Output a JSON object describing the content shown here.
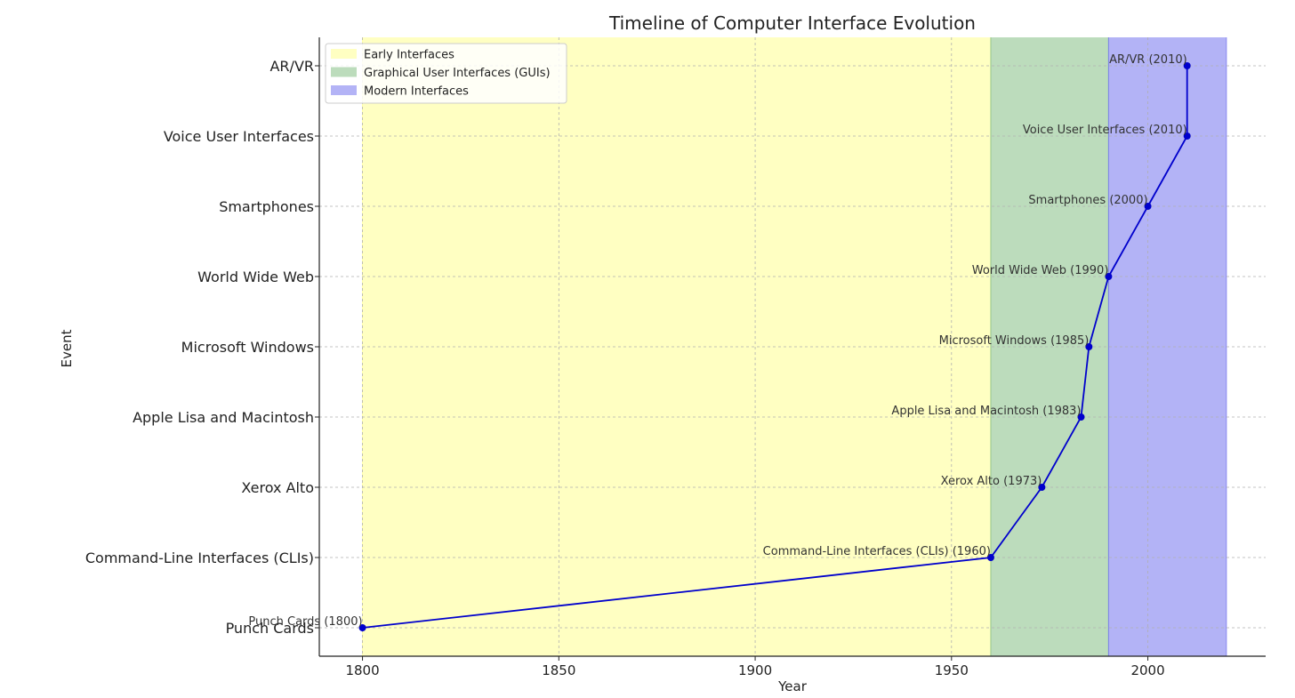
{
  "chart_data": {
    "type": "line",
    "title": "Timeline of Computer Interface Evolution",
    "xlabel": "Year",
    "ylabel": "Event",
    "xlim": [
      1789,
      2030
    ],
    "x_ticks": [
      1800,
      1850,
      1900,
      1950,
      2000
    ],
    "grid": true,
    "legend_position": "top-left",
    "categories": [
      "Punch Cards",
      "Command-Line Interfaces (CLIs)",
      "Xerox Alto",
      "Apple Lisa and Macintosh",
      "Microsoft Windows",
      "World Wide Web",
      "Smartphones",
      "Voice User Interfaces",
      "AR/VR"
    ],
    "series": [
      {
        "line_color": "#0000cc",
        "points": [
          {
            "category": "Punch Cards",
            "year": 1800,
            "label": "Punch Cards (1800)"
          },
          {
            "category": "Command-Line Interfaces (CLIs)",
            "year": 1960,
            "label": "Command-Line Interfaces (CLIs) (1960)"
          },
          {
            "category": "Xerox Alto",
            "year": 1973,
            "label": "Xerox Alto (1973)"
          },
          {
            "category": "Apple Lisa and Macintosh",
            "year": 1983,
            "label": "Apple Lisa and Macintosh (1983)"
          },
          {
            "category": "Microsoft Windows",
            "year": 1985,
            "label": "Microsoft Windows (1985)"
          },
          {
            "category": "World Wide Web",
            "year": 1990,
            "label": "World Wide Web (1990)"
          },
          {
            "category": "Smartphones",
            "year": 2000,
            "label": "Smartphones (2000)"
          },
          {
            "category": "Voice User Interfaces",
            "year": 2010,
            "label": "Voice User Interfaces (2010)"
          },
          {
            "category": "AR/VR",
            "year": 2010,
            "label": "AR/VR (2010)"
          }
        ]
      }
    ],
    "regions": [
      {
        "name": "Early Interfaces",
        "start": 1800,
        "end": 1960,
        "color": "#ffff99"
      },
      {
        "name": "Graphical User Interfaces (GUIs)",
        "start": 1960,
        "end": 1990,
        "color": "#8fc48f"
      },
      {
        "name": "Modern Interfaces",
        "start": 1990,
        "end": 2020,
        "color": "#8080f0"
      }
    ]
  }
}
